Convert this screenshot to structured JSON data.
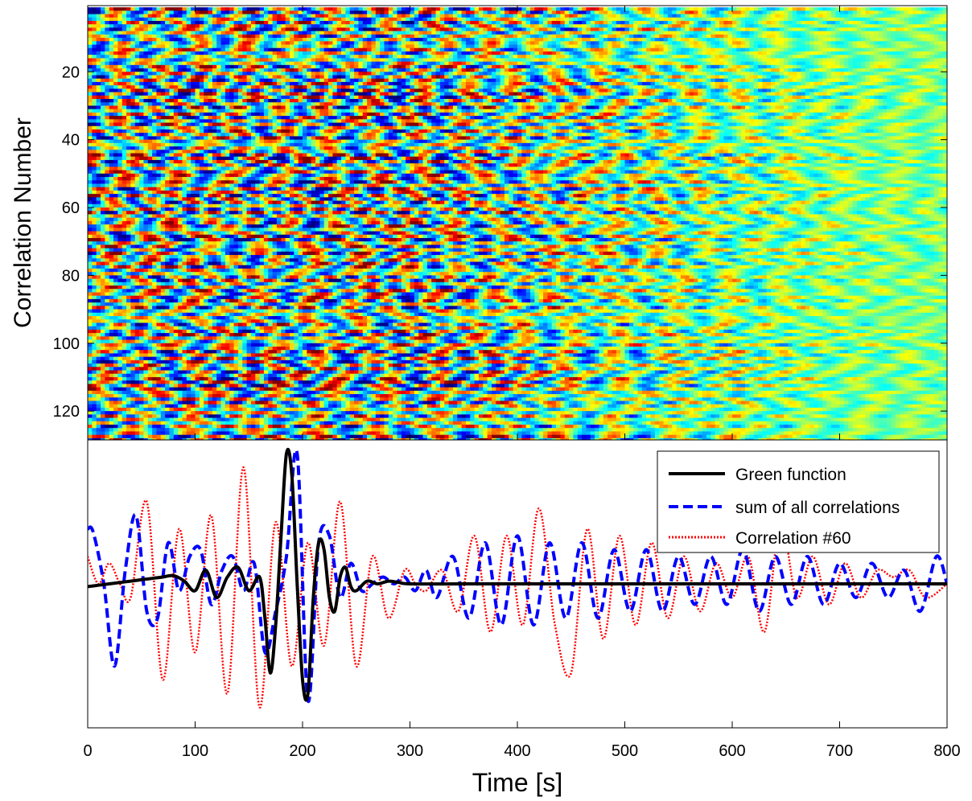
{
  "chart_data": [
    {
      "type": "heatmap",
      "title": "",
      "xlabel": "",
      "ylabel": "Correlation Number",
      "xlim": [
        0,
        800
      ],
      "ylim": [
        1,
        128
      ],
      "y_reversed": true,
      "x_ticks": [
        0,
        100,
        200,
        300,
        400,
        500,
        600,
        700,
        800
      ],
      "y_ticks": [
        20,
        40,
        60,
        80,
        100,
        120
      ],
      "y_tick_labels": [
        "20",
        "40",
        "60",
        "80",
        "100",
        "120"
      ],
      "rows": 128,
      "time_step": 4,
      "colormap": "jet",
      "note_values": "amplitude field: oscillating cross-correlation traces, stronger energy for t < 300 s and decaying toward 800 s"
    },
    {
      "type": "line",
      "title": "",
      "xlabel": "Time [s]",
      "ylabel": "",
      "xlim": [
        0,
        800
      ],
      "ylim": [
        -1.05,
        1.05
      ],
      "x_ticks": [
        0,
        100,
        200,
        300,
        400,
        500,
        600,
        700,
        800
      ],
      "x_tick_labels": [
        "0",
        "100",
        "200",
        "300",
        "400",
        "500",
        "600",
        "700",
        "800"
      ],
      "y_ticks_shown": false,
      "legend_position": "top-right",
      "series": [
        {
          "name": "Green function",
          "color": "#000000",
          "style": "solid",
          "x": [
            0,
            10,
            20,
            30,
            40,
            50,
            60,
            70,
            80,
            90,
            100,
            110,
            120,
            130,
            140,
            150,
            160,
            165,
            170,
            175,
            180,
            185,
            190,
            195,
            200,
            205,
            210,
            215,
            220,
            225,
            230,
            235,
            240,
            245,
            250,
            260,
            270,
            280,
            290,
            300,
            350,
            400,
            450,
            500,
            550,
            600,
            650,
            700,
            750,
            800
          ],
          "values": [
            -0.02,
            -0.01,
            0,
            0.01,
            0.02,
            0.03,
            0.04,
            0.05,
            0.06,
            0.02,
            -0.05,
            0.1,
            -0.1,
            0.05,
            0.12,
            -0.05,
            0.05,
            -0.25,
            -0.65,
            -0.3,
            0.35,
            0.95,
            0.8,
            0,
            -0.7,
            -0.8,
            -0.1,
            0.3,
            0.25,
            -0.1,
            -0.2,
            0.05,
            0.12,
            -0.02,
            -0.05,
            0.02,
            0,
            0.02,
            0.01,
            0,
            0,
            0,
            0,
            0,
            0,
            0,
            0,
            0,
            0,
            0
          ]
        },
        {
          "name": "sum of all correlations",
          "color": "#0000ff",
          "style": "dashed",
          "x": [
            0,
            5,
            15,
            25,
            35,
            45,
            55,
            65,
            75,
            85,
            95,
            105,
            115,
            125,
            135,
            145,
            155,
            165,
            175,
            185,
            195,
            205,
            215,
            225,
            235,
            245,
            255,
            265,
            275,
            285,
            295,
            305,
            315,
            325,
            340,
            355,
            370,
            385,
            400,
            415,
            430,
            445,
            460,
            475,
            490,
            505,
            520,
            535,
            550,
            565,
            580,
            595,
            610,
            625,
            640,
            655,
            670,
            685,
            700,
            715,
            730,
            745,
            760,
            775,
            790,
            800
          ],
          "values": [
            0.4,
            0.38,
            0.0,
            -0.6,
            0.1,
            0.5,
            -0.2,
            -0.25,
            0.3,
            -0.05,
            0.2,
            0.25,
            -0.15,
            0.1,
            0.2,
            -0.05,
            0.15,
            -0.5,
            -0.2,
            0.2,
            0.95,
            -0.85,
            0.3,
            0.35,
            -0.1,
            0.15,
            -0.05,
            0.0,
            0.05,
            0.0,
            0.05,
            -0.05,
            0.1,
            -0.1,
            0.2,
            -0.25,
            0.3,
            -0.3,
            0.35,
            -0.3,
            0.3,
            -0.25,
            0.3,
            -0.25,
            0.25,
            -0.2,
            0.25,
            -0.2,
            0.2,
            -0.15,
            0.2,
            -0.15,
            0.25,
            -0.2,
            0.2,
            -0.15,
            0.2,
            -0.15,
            0.15,
            -0.1,
            0.15,
            -0.1,
            0.1,
            -0.2,
            0.2,
            0.0
          ]
        },
        {
          "name": "Correlation #60",
          "color": "#ff0000",
          "style": "dotted",
          "x": [
            0,
            10,
            20,
            30,
            40,
            55,
            70,
            85,
            100,
            115,
            130,
            145,
            160,
            175,
            190,
            205,
            220,
            235,
            250,
            265,
            280,
            295,
            305,
            315,
            330,
            345,
            360,
            375,
            390,
            405,
            420,
            435,
            450,
            465,
            480,
            495,
            510,
            525,
            540,
            555,
            570,
            585,
            600,
            615,
            630,
            645,
            660,
            675,
            690,
            705,
            720,
            735,
            750,
            765,
            780,
            800
          ],
          "values": [
            0.2,
            0.0,
            0.15,
            0.0,
            -0.1,
            0.6,
            -0.7,
            0.4,
            -0.5,
            0.5,
            -0.8,
            0.85,
            -0.9,
            0.45,
            -0.6,
            0.3,
            -0.45,
            0.6,
            -0.6,
            0.2,
            -0.25,
            0.1,
            0.0,
            -0.05,
            0.1,
            -0.2,
            0.35,
            -0.35,
            0.35,
            -0.3,
            0.55,
            -0.3,
            -0.65,
            0.4,
            -0.4,
            0.35,
            -0.3,
            0.3,
            -0.25,
            0.2,
            -0.2,
            0.15,
            -0.1,
            0.2,
            -0.35,
            0.45,
            -0.1,
            0.2,
            -0.15,
            0.15,
            -0.1,
            0.1,
            0.05,
            0.1,
            -0.1,
            0.0
          ]
        }
      ]
    }
  ]
}
